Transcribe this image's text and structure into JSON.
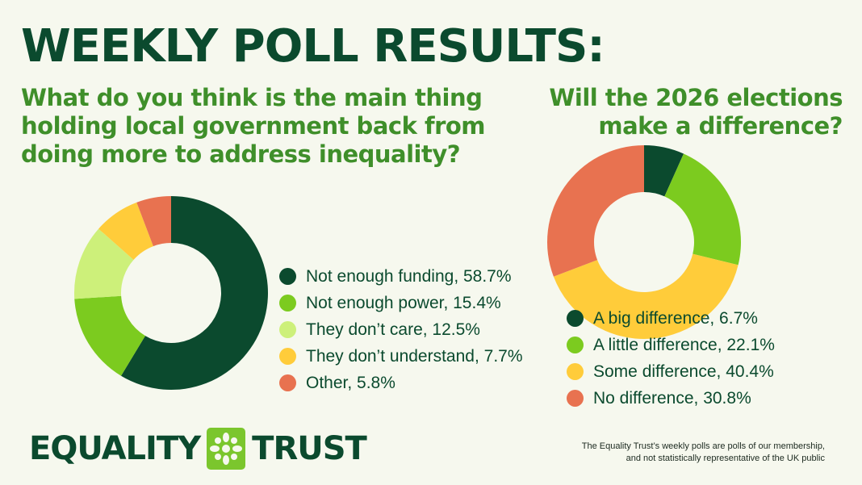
{
  "header": {
    "title": "WEEKLY POLL RESULTS:",
    "question_left": "What do you think is the main thing holding local government back from doing more to address inequality?",
    "question_right": "Will the 2026 elections make a difference?"
  },
  "chart_data": [
    {
      "type": "pie",
      "title": "What do you think is the main thing holding local government back from doing more to address inequality?",
      "donut": true,
      "categories": [
        "Not enough funding",
        "Not enough power",
        "They don’t care",
        "They don’t understand",
        "Other"
      ],
      "values": [
        58.7,
        15.4,
        12.5,
        7.7,
        5.8
      ],
      "colors": [
        "#0b4a2e",
        "#7ccb1f",
        "#cdf07a",
        "#ffcc3a",
        "#e87250"
      ],
      "legend_labels": [
        "Not enough funding, 58.7%",
        "Not enough power, 15.4%",
        "They don’t care, 12.5%",
        "They don’t understand, 7.7%",
        "Other, 5.8%"
      ],
      "legend_position": "right"
    },
    {
      "type": "pie",
      "title": "Will the 2026 elections make a difference?",
      "donut": true,
      "categories": [
        "A big difference",
        "A little difference",
        "Some difference",
        "No difference"
      ],
      "values": [
        6.7,
        22.1,
        40.4,
        30.8
      ],
      "colors": [
        "#0b4a2e",
        "#7ccb1f",
        "#ffcc3a",
        "#e87250"
      ],
      "legend_labels": [
        "A big difference, 6.7%",
        "A little difference, 22.1%",
        "Some difference, 40.4%",
        "No difference, 30.8%"
      ],
      "legend_position": "bottom"
    }
  ],
  "footer": {
    "logo_left": "EQUALITY",
    "logo_right": "TRUST",
    "logo_icon": "asterisk-flower-icon",
    "note_line1": "The Equality Trust’s weekly polls are polls of our membership,",
    "note_line2": "and not statistically representative of the UK public"
  }
}
